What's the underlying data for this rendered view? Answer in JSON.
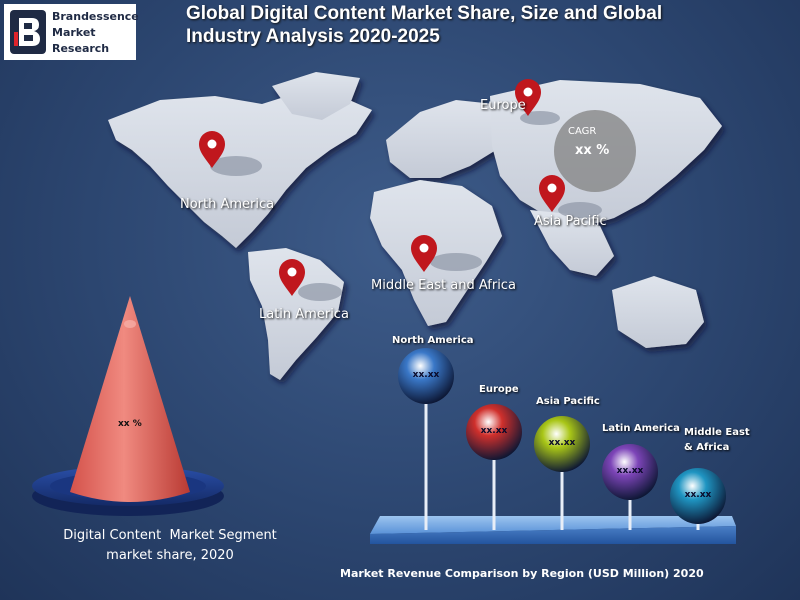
{
  "logo": {
    "line1": "Brandessence",
    "line2": "Market",
    "line3": "Research"
  },
  "title": {
    "line1": "Global Digital Content Market Share, Size and Global",
    "line2": "Industry Analysis 2020-2025"
  },
  "map_regions": [
    {
      "label": "North America"
    },
    {
      "label": "Europe"
    },
    {
      "label": "Asia Pacific"
    },
    {
      "label": "Latin America"
    },
    {
      "label": "Middle East and Africa"
    }
  ],
  "cagr": {
    "label": "CAGR",
    "value": "xx %"
  },
  "colors": {
    "pin": "#c0171d",
    "cone": "#e06a62",
    "platform": "#5a92d8"
  },
  "chart_data": [
    {
      "type": "pie",
      "slice_label": "xx %",
      "caption_line1": "Digital Content  Market Segment",
      "caption_line2": "market share, 2020"
    },
    {
      "type": "bar",
      "title": "Market Revenue Comparison by Region (USD Million) 2020",
      "categories": [
        "North America",
        "Europe",
        "Asia Pacific",
        "Latin America",
        "Middle East & Africa"
      ],
      "category_lines": [
        [
          "North America"
        ],
        [
          "Europe"
        ],
        [
          "Asia Pacific"
        ],
        [
          "Latin America"
        ],
        [
          "Middle East",
          "& Africa"
        ]
      ],
      "value_labels": [
        "xx.xx",
        "xx.xx",
        "xx.xx",
        "xx.xx",
        "xx.xx"
      ],
      "ball_colors": [
        "#3a78c8",
        "#d0302c",
        "#a9c617",
        "#7d45b8",
        "#1f95c2"
      ]
    }
  ]
}
